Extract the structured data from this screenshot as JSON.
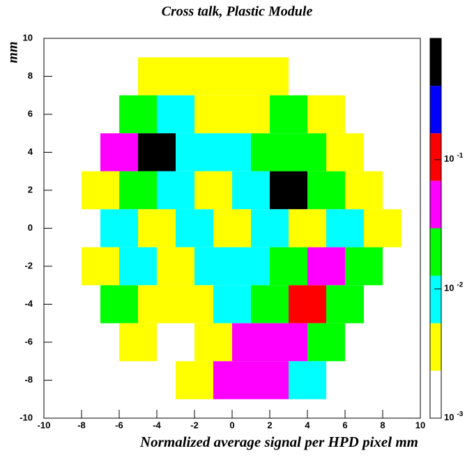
{
  "chart_data": {
    "type": "heatmap",
    "title": "Cross talk, Plastic Module",
    "x_label": "Normalized average signal per HPD pixel  mm",
    "y_label": "mm",
    "xlim": [
      -10,
      10
    ],
    "ylim": [
      -10,
      10
    ],
    "xticks": [
      -10,
      -8,
      -6,
      -4,
      -2,
      0,
      2,
      4,
      6,
      8,
      10
    ],
    "yticks": [
      -10,
      -8,
      -6,
      -4,
      -2,
      0,
      2,
      4,
      6,
      8,
      10
    ],
    "zlim": [
      0.001,
      0.87
    ],
    "zlog": true,
    "palette": [
      "#ffffff",
      "#ffff00",
      "#00ffff",
      "#00ff00",
      "#ff00ff",
      "#ff0000",
      "#0000ff",
      "#000000"
    ],
    "zticks": [
      {
        "value": 0.001,
        "label": "10",
        "exponent": "-3"
      },
      {
        "value": 0.01,
        "label": "10",
        "exponent": "-2"
      },
      {
        "value": 0.1,
        "label": "10",
        "exponent": "-1"
      }
    ],
    "rows": [
      {
        "y": [
          7,
          9
        ],
        "x_edges": [
          -5,
          -3,
          -1,
          1,
          3
        ],
        "values": [
          0.0035,
          0.0035,
          0.0035,
          0.0035
        ]
      },
      {
        "y": [
          5,
          7
        ],
        "x_edges": [
          -6,
          -4,
          -2,
          0,
          2,
          4,
          6
        ],
        "values": [
          0.019,
          0.0083,
          0.0035,
          0.0035,
          0.019,
          0.0035
        ]
      },
      {
        "y": [
          3,
          5
        ],
        "x_edges": [
          -7,
          -5,
          -3,
          -1,
          1,
          3,
          5,
          7
        ],
        "values": [
          0.045,
          0.57,
          0.0083,
          0.0083,
          0.019,
          0.019,
          0.0035
        ]
      },
      {
        "y": [
          1,
          3
        ],
        "x_edges": [
          -8,
          -6,
          -4,
          -2,
          0,
          2,
          4,
          6,
          8
        ],
        "values": [
          0.0035,
          0.019,
          0.0083,
          0.0035,
          0.0083,
          0.57,
          0.019,
          0.0035
        ]
      },
      {
        "y": [
          -1,
          1
        ],
        "x_edges": [
          -7,
          -5,
          -3,
          -1,
          1,
          3,
          5,
          7,
          9
        ],
        "values": [
          0.0083,
          0.0035,
          0.0083,
          0.0035,
          0.0083,
          0.0035,
          0.0083,
          0.0035
        ]
      },
      {
        "y": [
          -3,
          -1
        ],
        "x_edges": [
          -8,
          -6,
          -4,
          -2,
          0,
          2,
          4,
          6,
          8
        ],
        "values": [
          0.0035,
          0.0083,
          0.0035,
          0.0083,
          0.0083,
          0.019,
          0.045,
          0.019
        ]
      },
      {
        "y": [
          -5,
          -3
        ],
        "x_edges": [
          -7,
          -5,
          -3,
          -1,
          1,
          3,
          5,
          7
        ],
        "values": [
          0.019,
          0.0035,
          0.0035,
          0.0083,
          0.019,
          0.105,
          0.019
        ]
      },
      {
        "y": [
          -7,
          -5
        ],
        "x_edges": [
          -6,
          -4,
          -2,
          0,
          2,
          4,
          6
        ],
        "values": [
          0.0035,
          null,
          0.0035,
          0.045,
          0.045,
          0.019
        ]
      },
      {
        "y": [
          -9,
          -7
        ],
        "x_edges": [
          -3,
          -1,
          1,
          3,
          5
        ],
        "values": [
          0.0035,
          0.045,
          0.045,
          0.0083
        ]
      }
    ]
  }
}
